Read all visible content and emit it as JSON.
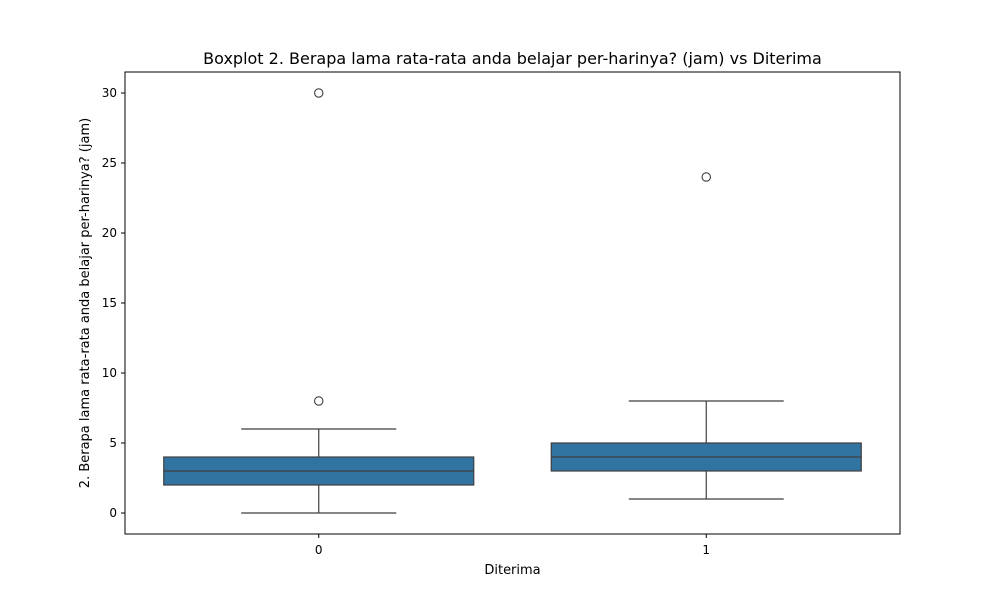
{
  "chart_data": {
    "type": "boxplot",
    "title": "Boxplot 2. Berapa lama rata-rata anda belajar per-harinya? (jam) vs Diterima",
    "xlabel": "Diterima",
    "ylabel": "2. Berapa lama rata-rata anda belajar per-harinya? (jam)",
    "categories": [
      "0",
      "1"
    ],
    "ylim": [
      -1.5,
      31.5
    ],
    "yticks": [
      0,
      5,
      10,
      15,
      20,
      25,
      30
    ],
    "grid": false,
    "legend": "none",
    "color": "#3274a1",
    "edge_color": "#3f3f3f",
    "boxes": [
      {
        "category": "0",
        "whisker_low": 0,
        "q1": 2,
        "median": 3,
        "q3": 4,
        "whisker_high": 6,
        "outliers": [
          8,
          30
        ]
      },
      {
        "category": "1",
        "whisker_low": 1,
        "q1": 3,
        "median": 4,
        "q3": 5,
        "whisker_high": 8,
        "outliers": [
          24
        ]
      }
    ]
  }
}
